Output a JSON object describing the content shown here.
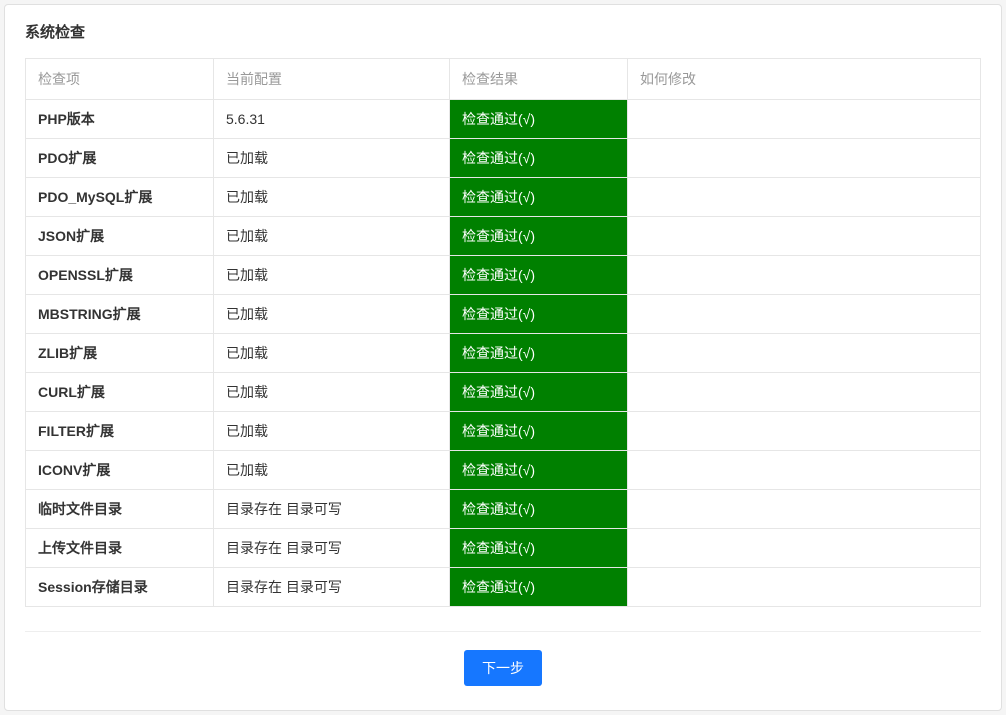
{
  "panel": {
    "title": "系统检查"
  },
  "table": {
    "headers": {
      "name": "检查项",
      "config": "当前配置",
      "result": "检查结果",
      "fix": "如何修改"
    },
    "result_pass_text": "检查通过(√)",
    "pass_bg_color": "#008000",
    "rows": [
      {
        "name": "PHP版本",
        "config": "5.6.31",
        "result": "pass",
        "fix": ""
      },
      {
        "name": "PDO扩展",
        "config": "已加载",
        "result": "pass",
        "fix": ""
      },
      {
        "name": "PDO_MySQL扩展",
        "config": "已加载",
        "result": "pass",
        "fix": ""
      },
      {
        "name": "JSON扩展",
        "config": "已加载",
        "result": "pass",
        "fix": ""
      },
      {
        "name": "OPENSSL扩展",
        "config": "已加载",
        "result": "pass",
        "fix": ""
      },
      {
        "name": "MBSTRING扩展",
        "config": "已加载",
        "result": "pass",
        "fix": ""
      },
      {
        "name": "ZLIB扩展",
        "config": "已加载",
        "result": "pass",
        "fix": ""
      },
      {
        "name": "CURL扩展",
        "config": "已加载",
        "result": "pass",
        "fix": ""
      },
      {
        "name": "FILTER扩展",
        "config": "已加载",
        "result": "pass",
        "fix": ""
      },
      {
        "name": "ICONV扩展",
        "config": "已加载",
        "result": "pass",
        "fix": ""
      },
      {
        "name": "临时文件目录",
        "config": "目录存在 目录可写",
        "result": "pass",
        "fix": ""
      },
      {
        "name": "上传文件目录",
        "config": "目录存在 目录可写",
        "result": "pass",
        "fix": ""
      },
      {
        "name": "Session存储目录",
        "config": "目录存在 目录可写",
        "result": "pass",
        "fix": ""
      }
    ]
  },
  "actions": {
    "next_label": "下一步"
  },
  "styling": {
    "panel_bg": "#ffffff",
    "panel_border": "#e0e0e0",
    "table_border": "#e6e6e6",
    "header_text_color": "#999999",
    "cell_text_color": "#333333",
    "button_bg": "#1677ff",
    "button_text": "#ffffff",
    "divider_color": "#eeeeee",
    "font_size_pt": 10.5,
    "title_font_size_pt": 11
  }
}
